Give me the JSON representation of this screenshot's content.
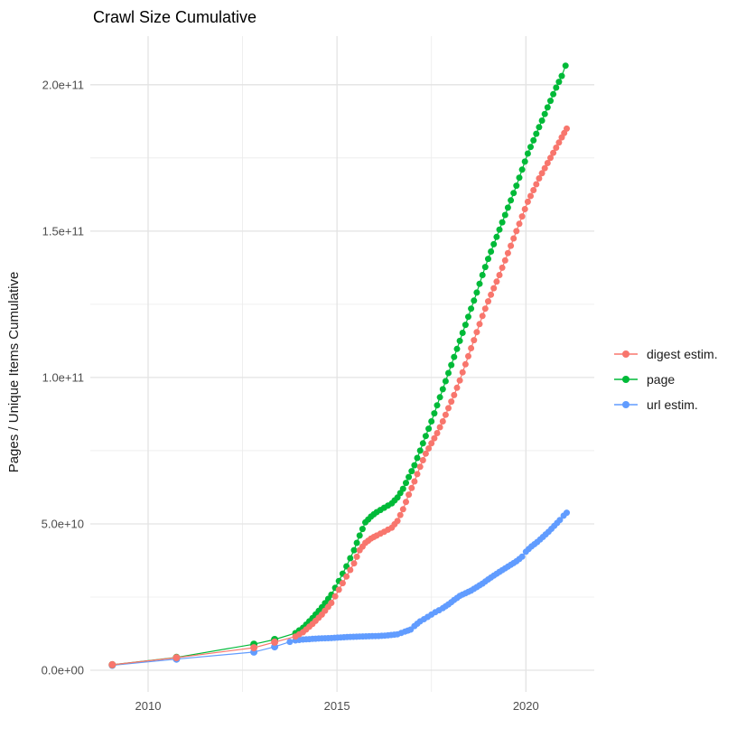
{
  "title": "Crawl Size Cumulative",
  "chart_data": {
    "type": "scatter",
    "title": "Crawl Size Cumulative",
    "xlabel": "",
    "ylabel": "Pages / Unique Items Cumulative",
    "grid": true,
    "legend_position": "right",
    "xlim": [
      2008.47,
      2021.81
    ],
    "ylim": [
      -7400000000.0,
      216600000000.0
    ],
    "x_major_ticks": [
      {
        "label": "2010",
        "value": 2010
      },
      {
        "label": "2015",
        "value": 2015
      },
      {
        "label": "2020",
        "value": 2020
      }
    ],
    "x_minor_gridlines": [
      2012.5,
      2017.5
    ],
    "y_major_ticks": [
      {
        "label": "0.0e+00",
        "value": 0
      },
      {
        "label": "5.0e+10",
        "value": 50000000000.0
      },
      {
        "label": "1.0e+11",
        "value": 100000000000.0
      },
      {
        "label": "1.5e+11",
        "value": 150000000000.0
      },
      {
        "label": "2.0e+11",
        "value": 200000000000.0
      }
    ],
    "y_minor_gridlines": [
      25000000000.0,
      75000000000.0,
      125000000000.0,
      175000000000.0
    ],
    "value_unit_of_points": 1000000000.0,
    "series": [
      {
        "name": "digest estim.",
        "color": "#F8766D",
        "points_year_billions": [
          [
            2009.05,
            1.9
          ],
          [
            2010.75,
            4.3
          ],
          [
            2012.8,
            7.7
          ],
          [
            2013.35,
            9.6
          ],
          [
            2013.9,
            11.5
          ],
          [
            2014.1,
            13.0
          ],
          [
            2014.35,
            15.8
          ],
          [
            2014.6,
            19.0
          ],
          [
            2014.85,
            23.0
          ],
          [
            2015.05,
            27.5
          ],
          [
            2015.25,
            32.0
          ],
          [
            2015.45,
            36.5
          ],
          [
            2015.6,
            41.0
          ],
          [
            2015.75,
            43.5
          ],
          [
            2015.9,
            45.0
          ],
          [
            2016.05,
            46.0
          ],
          [
            2016.25,
            47.3
          ],
          [
            2016.45,
            48.7
          ],
          [
            2016.6,
            51.0
          ],
          [
            2016.75,
            55.0
          ],
          [
            2016.9,
            60.0
          ],
          [
            2017.05,
            64.5
          ],
          [
            2017.2,
            69.5
          ],
          [
            2017.35,
            74.0
          ],
          [
            2017.5,
            77.5
          ],
          [
            2017.65,
            81.0
          ],
          [
            2017.8,
            85.0
          ],
          [
            2017.95,
            89.5
          ],
          [
            2018.1,
            94.0
          ],
          [
            2018.25,
            99.0
          ],
          [
            2018.4,
            104.5
          ],
          [
            2018.55,
            110.0
          ],
          [
            2018.7,
            115.5
          ],
          [
            2018.85,
            121.0
          ],
          [
            2019.0,
            126.0
          ],
          [
            2019.15,
            130.5
          ],
          [
            2019.3,
            135.0
          ],
          [
            2019.45,
            140.0
          ],
          [
            2019.6,
            145.0
          ],
          [
            2019.75,
            150.0
          ],
          [
            2019.9,
            155.0
          ],
          [
            2020.05,
            160.0
          ],
          [
            2020.2,
            164.0
          ],
          [
            2020.35,
            168.0
          ],
          [
            2020.5,
            171.5
          ],
          [
            2020.65,
            175.0
          ],
          [
            2020.8,
            178.5
          ],
          [
            2020.95,
            182.0
          ],
          [
            2021.08,
            185.0
          ]
        ]
      },
      {
        "name": "page",
        "color": "#00BA38",
        "points_year_billions": [
          [
            2009.05,
            1.9
          ],
          [
            2010.75,
            4.4
          ],
          [
            2012.8,
            8.9
          ],
          [
            2013.35,
            10.5
          ],
          [
            2013.9,
            12.7
          ],
          [
            2014.1,
            14.5
          ],
          [
            2014.35,
            17.8
          ],
          [
            2014.6,
            21.5
          ],
          [
            2014.85,
            25.8
          ],
          [
            2015.05,
            30.5
          ],
          [
            2015.25,
            35.5
          ],
          [
            2015.45,
            41.0
          ],
          [
            2015.6,
            46.0
          ],
          [
            2015.75,
            50.5
          ],
          [
            2015.9,
            52.5
          ],
          [
            2016.05,
            54.0
          ],
          [
            2016.25,
            55.5
          ],
          [
            2016.45,
            57.0
          ],
          [
            2016.6,
            59.0
          ],
          [
            2016.75,
            62.0
          ],
          [
            2016.9,
            66.0
          ],
          [
            2017.05,
            70.0
          ],
          [
            2017.2,
            75.0
          ],
          [
            2017.35,
            80.0
          ],
          [
            2017.5,
            85.0
          ],
          [
            2017.65,
            90.5
          ],
          [
            2017.8,
            96.0
          ],
          [
            2017.95,
            101.5
          ],
          [
            2018.1,
            107.0
          ],
          [
            2018.25,
            112.5
          ],
          [
            2018.4,
            118.0
          ],
          [
            2018.55,
            123.5
          ],
          [
            2018.7,
            129.0
          ],
          [
            2018.85,
            135.0
          ],
          [
            2019.0,
            140.5
          ],
          [
            2019.15,
            145.5
          ],
          [
            2019.3,
            150.5
          ],
          [
            2019.45,
            155.5
          ],
          [
            2019.6,
            160.5
          ],
          [
            2019.75,
            165.5
          ],
          [
            2019.9,
            171.0
          ],
          [
            2020.05,
            176.5
          ],
          [
            2020.2,
            181.0
          ],
          [
            2020.35,
            185.5
          ],
          [
            2020.5,
            190.0
          ],
          [
            2020.65,
            194.5
          ],
          [
            2020.8,
            199.0
          ],
          [
            2020.95,
            203.0
          ],
          [
            2021.05,
            206.5
          ]
        ]
      },
      {
        "name": "url estim.",
        "color": "#619CFF",
        "points_year_billions": [
          [
            2009.05,
            1.7
          ],
          [
            2010.75,
            3.8
          ],
          [
            2012.8,
            6.2
          ],
          [
            2013.35,
            8.0
          ],
          [
            2013.75,
            9.7
          ],
          [
            2013.9,
            10.2
          ],
          [
            2014.1,
            10.5
          ],
          [
            2014.35,
            10.7
          ],
          [
            2014.6,
            10.9
          ],
          [
            2014.85,
            11.0
          ],
          [
            2015.1,
            11.2
          ],
          [
            2015.35,
            11.4
          ],
          [
            2015.6,
            11.5
          ],
          [
            2015.85,
            11.6
          ],
          [
            2016.1,
            11.7
          ],
          [
            2016.35,
            11.9
          ],
          [
            2016.6,
            12.3
          ],
          [
            2016.8,
            13.2
          ],
          [
            2016.95,
            13.9
          ],
          [
            2017.05,
            15.1
          ],
          [
            2017.2,
            16.7
          ],
          [
            2017.4,
            18.2
          ],
          [
            2017.6,
            19.8
          ],
          [
            2017.8,
            21.2
          ],
          [
            2017.95,
            22.5
          ],
          [
            2018.1,
            24.0
          ],
          [
            2018.25,
            25.4
          ],
          [
            2018.4,
            26.3
          ],
          [
            2018.55,
            27.2
          ],
          [
            2018.7,
            28.4
          ],
          [
            2018.85,
            29.6
          ],
          [
            2019.0,
            31.0
          ],
          [
            2019.15,
            32.3
          ],
          [
            2019.3,
            33.6
          ],
          [
            2019.45,
            34.8
          ],
          [
            2019.6,
            36.0
          ],
          [
            2019.75,
            37.2
          ],
          [
            2019.9,
            38.8
          ],
          [
            2020.0,
            40.5
          ],
          [
            2020.15,
            42.3
          ],
          [
            2020.3,
            43.8
          ],
          [
            2020.45,
            45.5
          ],
          [
            2020.6,
            47.3
          ],
          [
            2020.75,
            49.3
          ],
          [
            2020.9,
            51.3
          ],
          [
            2021.0,
            52.8
          ],
          [
            2021.08,
            53.8
          ]
        ]
      }
    ]
  },
  "colors": {
    "background": "#ffffff",
    "grid_major": "#e3e3e3",
    "grid_minor": "#ebebeb",
    "tick_text": "#4d4d4d",
    "title_text": "#000000"
  }
}
